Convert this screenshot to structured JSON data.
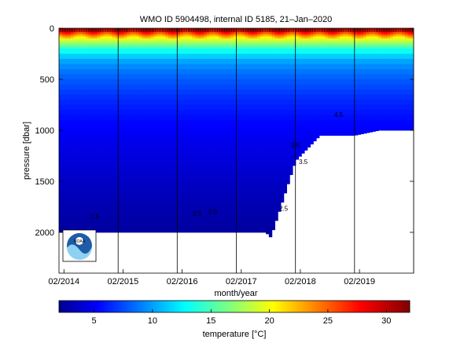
{
  "chart_data": [
    {
      "type": "heatmap",
      "title": "WMO ID 5904498, internal ID 5185, 21–Jan–2020",
      "xlabel": "month/year",
      "ylabel": "pressure [dbar]",
      "x_ticks": [
        "02/2014",
        "02/2015",
        "02/2016",
        "02/2017",
        "02/2018",
        "02/2019"
      ],
      "x_range": [
        "2014-01",
        "2020-01"
      ],
      "y_ticks": [
        0,
        500,
        1000,
        1500,
        2000
      ],
      "ylim": [
        2400,
        0
      ],
      "y_reversed": true,
      "grid": false,
      "vertical_lines_at": [
        "2015-01",
        "2016-01",
        "2017-01",
        "2018-01",
        "2019-01",
        "2020-01"
      ],
      "depth_profile": {
        "pressure": [
          0,
          50,
          100,
          200,
          300,
          400,
          500,
          700,
          900,
          1100,
          1300,
          1500,
          1700,
          2000
        ],
        "temperature": [
          30,
          26,
          20,
          14,
          10.5,
          9,
          8,
          6.5,
          5.5,
          4.8,
          4.2,
          3.6,
          3.1,
          2.5
        ]
      },
      "max_pressure_profile": {
        "time": [
          "2014-01",
          "2017-07",
          "2017-08",
          "2018-01",
          "2018-03",
          "2018-06",
          "2019-01",
          "2019-06",
          "2020-01"
        ],
        "pressure": [
          2000,
          2000,
          2050,
          1300,
          1200,
          1050,
          1050,
          1000,
          1000
        ]
      },
      "contour_labels": [
        "2.5",
        "2.5",
        "2.5",
        "2.5",
        "3.5",
        "3.5",
        "4.5"
      ],
      "logo": "noaa-logo"
    },
    {
      "type": "heatmap",
      "colorbar": true,
      "colormap": "jet",
      "xlabel": "temperature [°C]",
      "range": [
        2,
        32
      ],
      "ticks": [
        5,
        10,
        15,
        20,
        25,
        30
      ]
    }
  ]
}
